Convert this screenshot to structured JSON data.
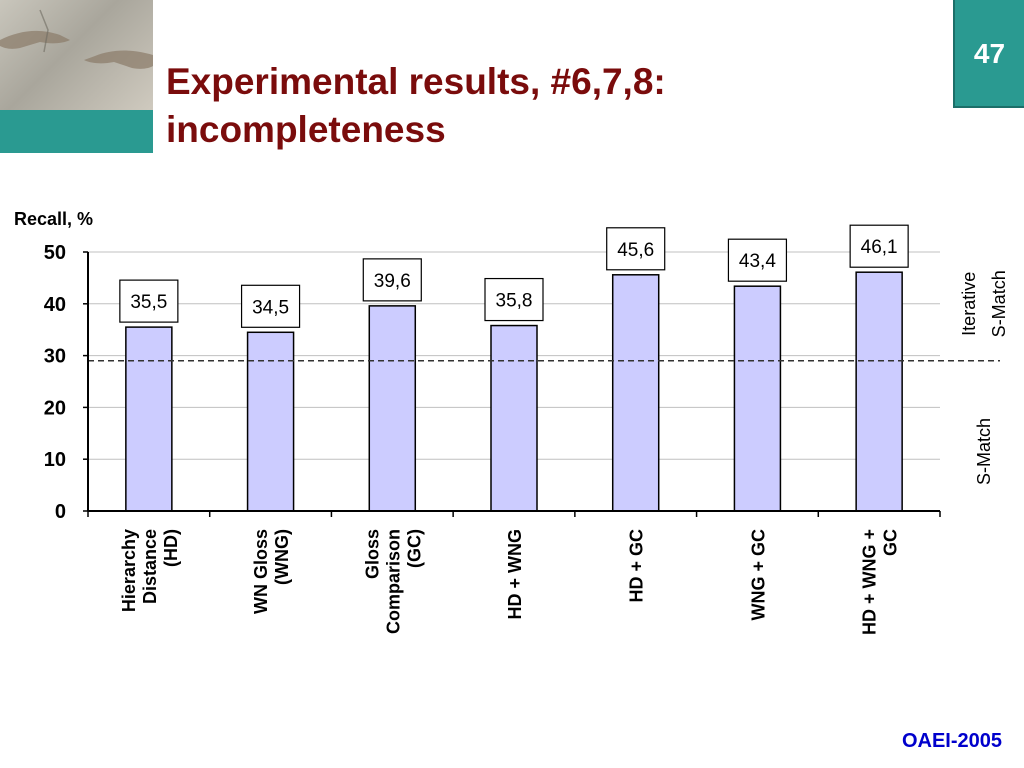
{
  "slide": {
    "title_line1": "Experimental results, #6,7,8:",
    "title_line2": "incompleteness",
    "page_number": "47",
    "footer": "OAEI-2005",
    "logo_icon": "creation-of-adam-hands-icon",
    "accent_color": "#2a9a91",
    "title_color": "#7a0c0c",
    "footer_color": "#0000cc"
  },
  "chart_data": {
    "type": "bar",
    "ylabel": "Recall, %",
    "ylim": [
      0,
      50
    ],
    "yticks": [
      0,
      10,
      20,
      30,
      40,
      50
    ],
    "grid": true,
    "categories": [
      [
        "Hierarchy",
        "Distance",
        "(HD)"
      ],
      [
        "WN Gloss",
        "(WNG)"
      ],
      [
        "Gloss",
        "Comparison",
        "(GC)"
      ],
      [
        "HD + WNG"
      ],
      [
        "HD + GC"
      ],
      [
        "WNG + GC"
      ],
      [
        "HD + WNG +",
        "GC"
      ]
    ],
    "values": [
      35.5,
      34.5,
      39.6,
      35.8,
      45.6,
      43.4,
      46.1
    ],
    "value_labels": [
      "35,5",
      "34,5",
      "39,6",
      "35,8",
      "45,6",
      "43,4",
      "46,1"
    ],
    "bar_color": "#ccccff",
    "threshold_value": 29,
    "region_labels": {
      "above": "Iterative S-Match",
      "below": "S-Match"
    }
  }
}
